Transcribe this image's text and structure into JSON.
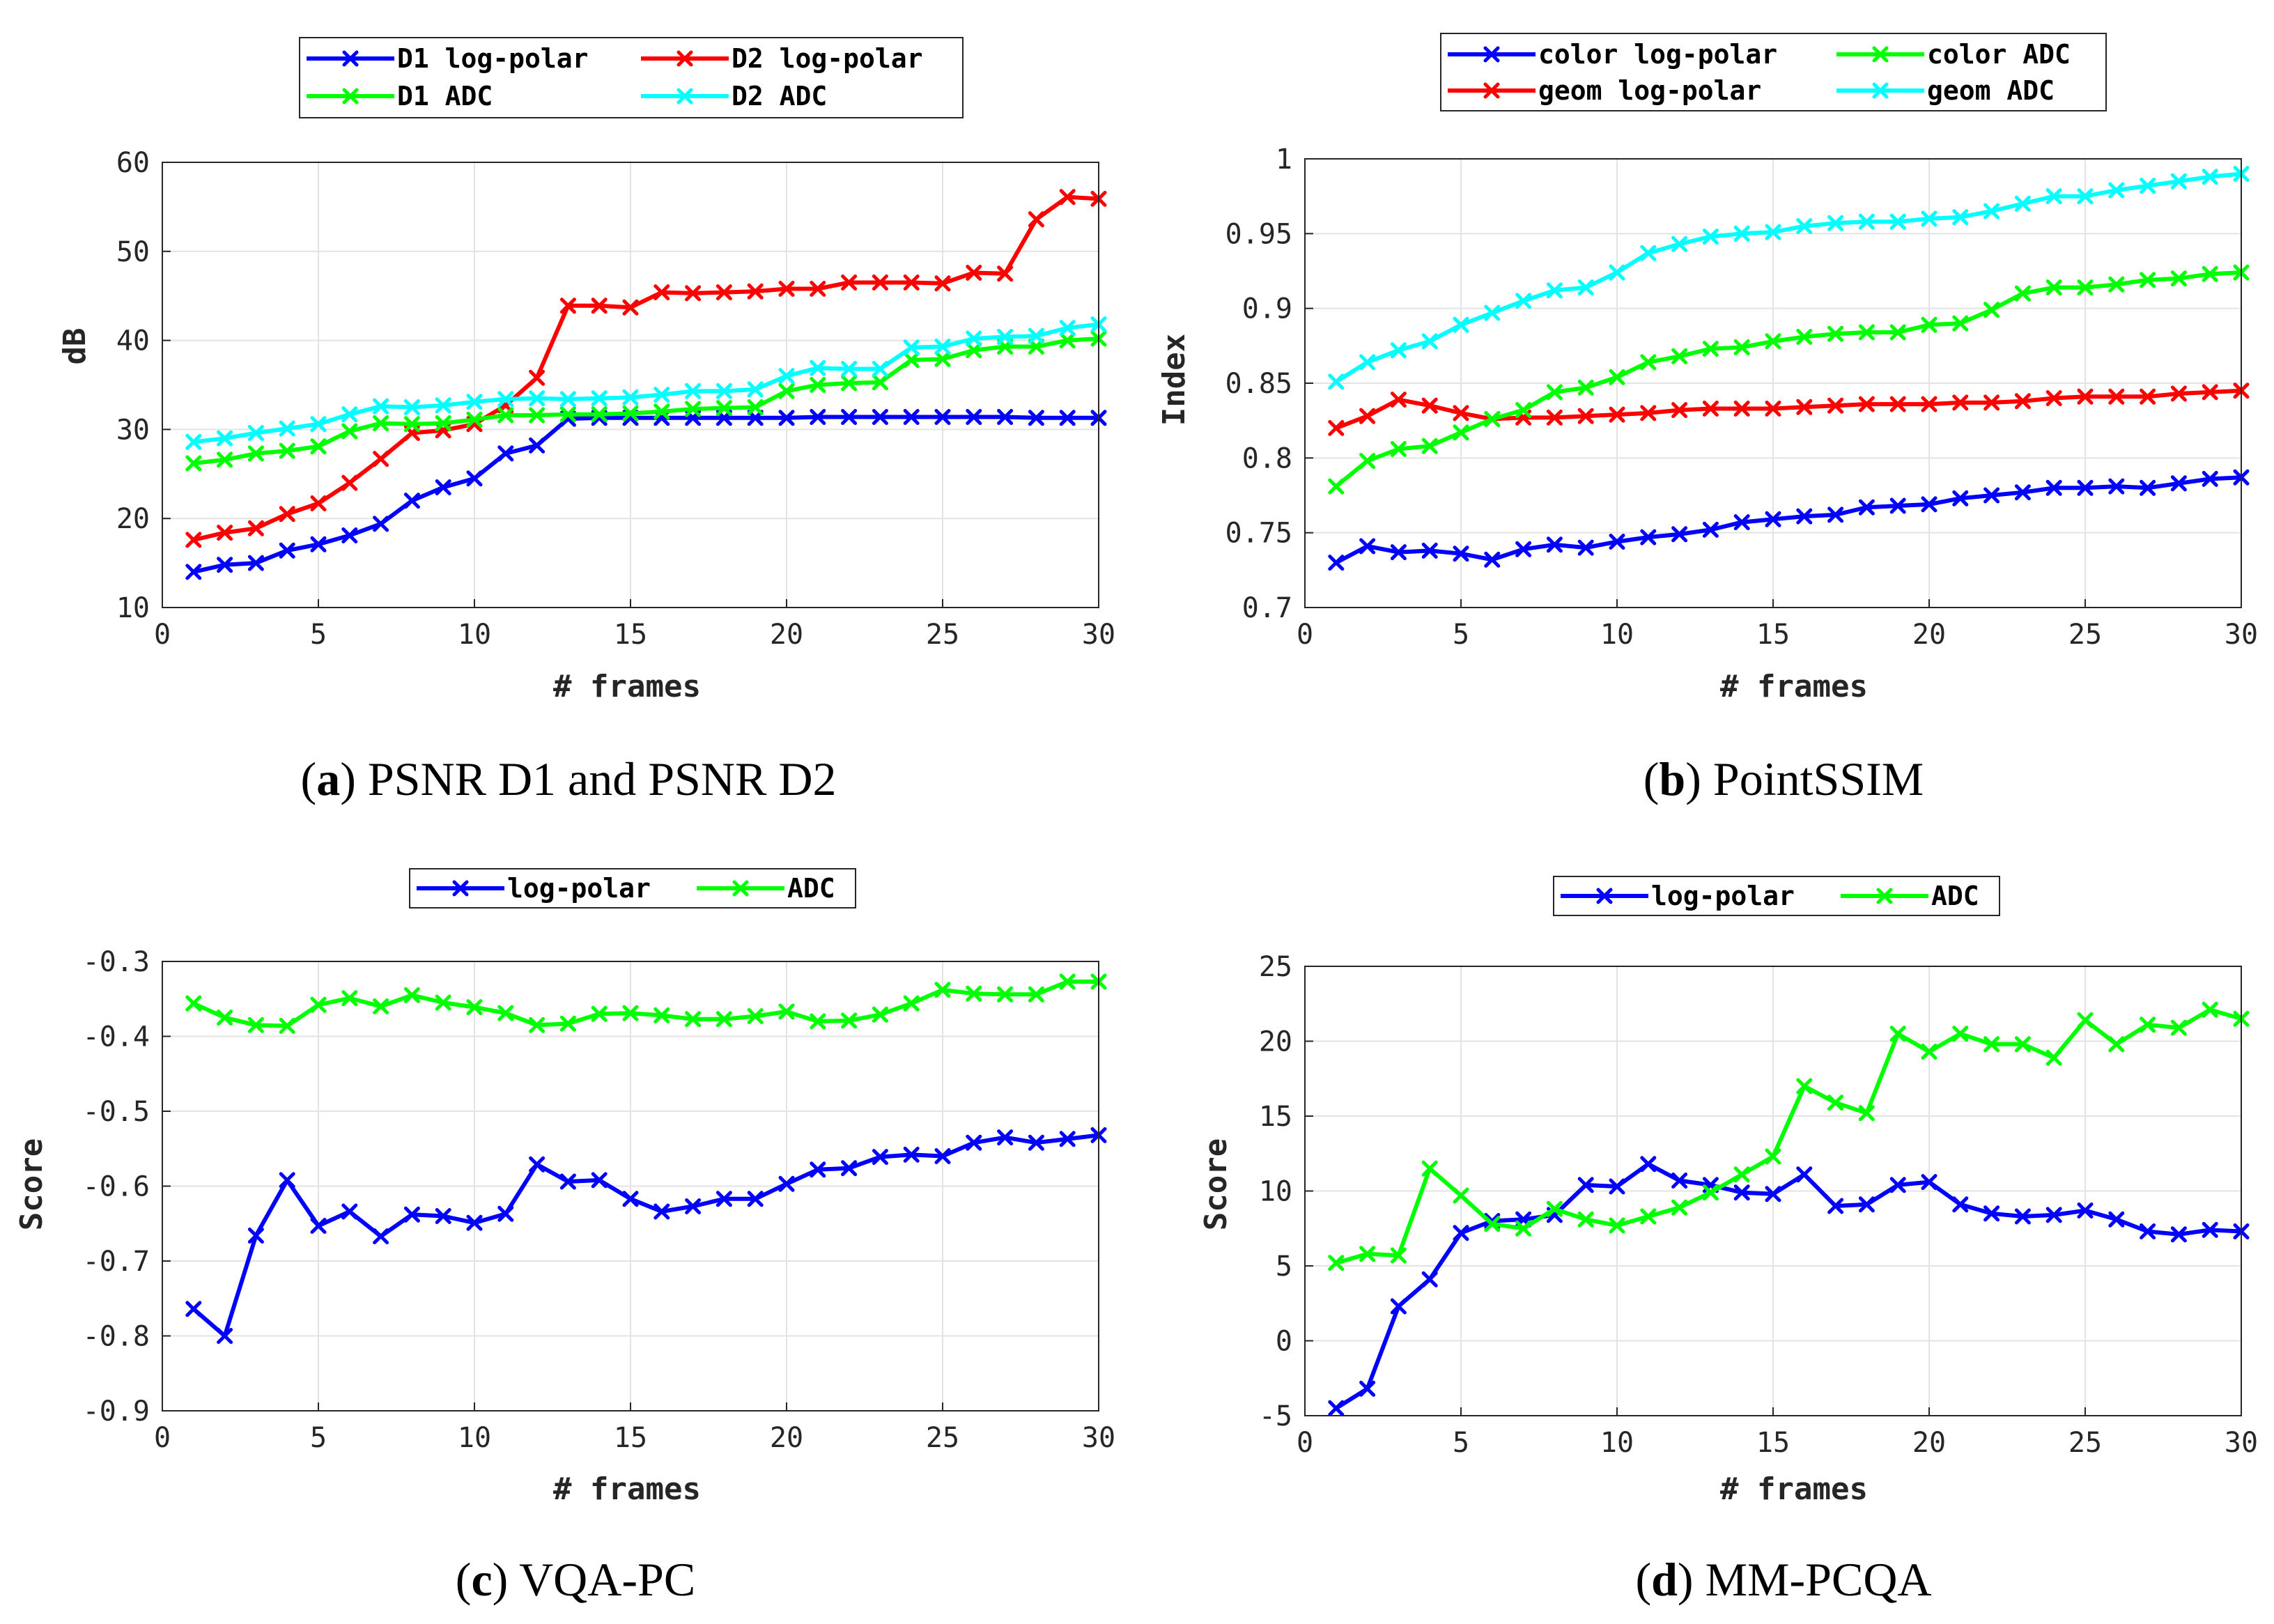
{
  "colors": {
    "blue": "#0000ff",
    "red": "#ff0000",
    "green": "#00ff00",
    "cyan": "#00ffff",
    "grid": "#e3e3e3",
    "axis": "#262626"
  },
  "chart_data": [
    {
      "type": "line",
      "caption": {
        "letter": "a",
        "text": "PSNR D1 and PSNR D2"
      },
      "xlabel": "# frames",
      "ylabel": "dB",
      "xlim": [
        0,
        30
      ],
      "ylim": [
        10,
        60
      ],
      "xticks": [
        0,
        5,
        10,
        15,
        20,
        25,
        30
      ],
      "yticks": [
        10,
        20,
        30,
        40,
        50,
        60
      ],
      "xtick_labels": [
        "0",
        "5",
        "10",
        "15",
        "20",
        "25",
        "30"
      ],
      "ytick_labels": [
        "10",
        "20",
        "30",
        "40",
        "50",
        "60"
      ],
      "x": [
        1,
        2,
        3,
        4,
        5,
        6,
        7,
        8,
        9,
        10,
        11,
        12,
        13,
        14,
        15,
        16,
        17,
        18,
        19,
        20,
        21,
        22,
        23,
        24,
        25,
        26,
        27,
        28,
        29,
        30
      ],
      "series": [
        {
          "name": "D1 log-polar",
          "color": "blue",
          "values": [
            14,
            14.8,
            15,
            16.4,
            17.1,
            18.1,
            19.4,
            22,
            23.5,
            24.5,
            27.3,
            28.2,
            31.2,
            31.3,
            31.3,
            31.3,
            31.3,
            31.3,
            31.3,
            31.3,
            31.4,
            31.4,
            31.4,
            31.4,
            31.4,
            31.4,
            31.4,
            31.3,
            31.3,
            31.3
          ]
        },
        {
          "name": "D2 log-polar",
          "color": "red",
          "values": [
            17.6,
            18.4,
            18.9,
            20.5,
            21.7,
            24,
            26.7,
            29.6,
            29.9,
            30.6,
            32.7,
            35.8,
            43.9,
            43.9,
            43.7,
            45.4,
            45.3,
            45.4,
            45.5,
            45.8,
            45.8,
            46.5,
            46.5,
            46.5,
            46.4,
            47.6,
            47.5,
            53.6,
            56.1,
            55.9
          ]
        },
        {
          "name": "D1 ADC",
          "color": "green",
          "values": [
            26.2,
            26.6,
            27.3,
            27.6,
            28.1,
            29.8,
            30.7,
            30.6,
            30.7,
            31.1,
            31.6,
            31.6,
            31.7,
            31.7,
            31.8,
            32,
            32.3,
            32.4,
            32.5,
            34.3,
            35,
            35.2,
            35.3,
            37.8,
            37.9,
            38.9,
            39.3,
            39.3,
            40,
            40.2
          ]
        },
        {
          "name": "D2 ADC",
          "color": "cyan",
          "values": [
            28.6,
            29,
            29.6,
            30.1,
            30.6,
            31.7,
            32.6,
            32.5,
            32.7,
            33.1,
            33.4,
            33.5,
            33.4,
            33.5,
            33.6,
            33.9,
            34.3,
            34.3,
            34.5,
            36,
            36.9,
            36.8,
            36.8,
            39.2,
            39.3,
            40.2,
            40.4,
            40.5,
            41.4,
            41.8
          ]
        }
      ]
    },
    {
      "type": "line",
      "caption": {
        "letter": "b",
        "text": "PointSSIM"
      },
      "xlabel": "# frames",
      "ylabel": "Index",
      "xlim": [
        0,
        30
      ],
      "ylim": [
        0.7,
        1.0
      ],
      "xticks": [
        0,
        5,
        10,
        15,
        20,
        25,
        30
      ],
      "yticks": [
        0.7,
        0.75,
        0.8,
        0.85,
        0.9,
        0.95,
        1.0
      ],
      "xtick_labels": [
        "0",
        "5",
        "10",
        "15",
        "20",
        "25",
        "30"
      ],
      "ytick_labels": [
        "0.7",
        "0.75",
        "0.8",
        "0.85",
        "0.9",
        "0.95",
        "1"
      ],
      "x": [
        1,
        2,
        3,
        4,
        5,
        6,
        7,
        8,
        9,
        10,
        11,
        12,
        13,
        14,
        15,
        16,
        17,
        18,
        19,
        20,
        21,
        22,
        23,
        24,
        25,
        26,
        27,
        28,
        29,
        30
      ],
      "series": [
        {
          "name": "color log-polar",
          "color": "blue",
          "values": [
            0.73,
            0.741,
            0.737,
            0.738,
            0.736,
            0.732,
            0.739,
            0.742,
            0.74,
            0.744,
            0.747,
            0.749,
            0.752,
            0.757,
            0.759,
            0.761,
            0.762,
            0.767,
            0.768,
            0.769,
            0.773,
            0.775,
            0.777,
            0.78,
            0.78,
            0.781,
            0.78,
            0.783,
            0.786,
            0.787
          ]
        },
        {
          "name": "geom log-polar",
          "color": "red",
          "values": [
            0.82,
            0.828,
            0.839,
            0.835,
            0.83,
            0.826,
            0.827,
            0.827,
            0.828,
            0.829,
            0.83,
            0.832,
            0.833,
            0.833,
            0.833,
            0.834,
            0.835,
            0.836,
            0.836,
            0.836,
            0.837,
            0.837,
            0.838,
            0.84,
            0.841,
            0.841,
            0.841,
            0.843,
            0.844,
            0.845
          ]
        },
        {
          "name": "color ADC",
          "color": "green",
          "values": [
            0.781,
            0.798,
            0.806,
            0.808,
            0.817,
            0.826,
            0.832,
            0.844,
            0.847,
            0.854,
            0.864,
            0.868,
            0.873,
            0.874,
            0.878,
            0.881,
            0.883,
            0.884,
            0.884,
            0.889,
            0.89,
            0.899,
            0.91,
            0.914,
            0.914,
            0.916,
            0.919,
            0.92,
            0.923,
            0.924
          ]
        },
        {
          "name": "geom ADC",
          "color": "cyan",
          "values": [
            0.851,
            0.864,
            0.872,
            0.878,
            0.889,
            0.897,
            0.905,
            0.912,
            0.914,
            0.924,
            0.937,
            0.943,
            0.948,
            0.95,
            0.951,
            0.955,
            0.957,
            0.958,
            0.958,
            0.96,
            0.961,
            0.965,
            0.97,
            0.975,
            0.975,
            0.979,
            0.982,
            0.985,
            0.988,
            0.99
          ]
        }
      ]
    },
    {
      "type": "line",
      "caption": {
        "letter": "c",
        "text": "VQA-PC"
      },
      "xlabel": "# frames",
      "ylabel": "Score",
      "xlim": [
        0,
        30
      ],
      "ylim": [
        -0.9,
        -0.3
      ],
      "xticks": [
        0,
        5,
        10,
        15,
        20,
        25,
        30
      ],
      "yticks": [
        -0.9,
        -0.8,
        -0.7,
        -0.6,
        -0.5,
        -0.4,
        -0.3
      ],
      "xtick_labels": [
        "0",
        "5",
        "10",
        "15",
        "20",
        "25",
        "30"
      ],
      "ytick_labels": [
        "-0.9",
        "-0.8",
        "-0.7",
        "-0.6",
        "-0.5",
        "-0.4",
        "-0.3"
      ],
      "x": [
        1,
        2,
        3,
        4,
        5,
        6,
        7,
        8,
        9,
        10,
        11,
        12,
        13,
        14,
        15,
        16,
        17,
        18,
        19,
        20,
        21,
        22,
        23,
        24,
        25,
        26,
        27,
        28,
        29,
        30
      ],
      "series": [
        {
          "name": "log-polar",
          "color": "blue",
          "values": [
            -0.764,
            -0.8,
            -0.666,
            -0.592,
            -0.653,
            -0.634,
            -0.667,
            -0.638,
            -0.64,
            -0.649,
            -0.637,
            -0.571,
            -0.594,
            -0.592,
            -0.617,
            -0.634,
            -0.627,
            -0.617,
            -0.617,
            -0.597,
            -0.578,
            -0.576,
            -0.561,
            -0.558,
            -0.56,
            -0.542,
            -0.535,
            -0.542,
            -0.537,
            -0.532
          ]
        },
        {
          "name": "ADC",
          "color": "green",
          "values": [
            -0.356,
            -0.375,
            -0.385,
            -0.386,
            -0.358,
            -0.349,
            -0.36,
            -0.345,
            -0.355,
            -0.361,
            -0.369,
            -0.385,
            -0.383,
            -0.37,
            -0.369,
            -0.372,
            -0.377,
            -0.377,
            -0.373,
            -0.367,
            -0.38,
            -0.379,
            -0.371,
            -0.356,
            -0.338,
            -0.343,
            -0.344,
            -0.344,
            -0.327,
            -0.327
          ]
        }
      ]
    },
    {
      "type": "line",
      "caption": {
        "letter": "d",
        "text": "MM-PCQA"
      },
      "xlabel": "# frames",
      "ylabel": "Score",
      "xlim": [
        0,
        30
      ],
      "ylim": [
        -5,
        25
      ],
      "xticks": [
        0,
        5,
        10,
        15,
        20,
        25,
        30
      ],
      "yticks": [
        -5,
        0,
        5,
        10,
        15,
        20,
        25
      ],
      "xtick_labels": [
        "0",
        "5",
        "10",
        "15",
        "20",
        "25",
        "30"
      ],
      "ytick_labels": [
        "-5",
        "0",
        "5",
        "10",
        "15",
        "20",
        "25"
      ],
      "x": [
        1,
        2,
        3,
        4,
        5,
        6,
        7,
        8,
        9,
        10,
        11,
        12,
        13,
        14,
        15,
        16,
        17,
        18,
        19,
        20,
        21,
        22,
        23,
        24,
        25,
        26,
        27,
        28,
        29,
        30
      ],
      "series": [
        {
          "name": "log-polar",
          "color": "blue",
          "values": [
            -4.5,
            -3.2,
            2.3,
            4.1,
            7.2,
            8,
            8.1,
            8.4,
            10.4,
            10.3,
            11.8,
            10.7,
            10.4,
            9.9,
            9.8,
            11.1,
            9,
            9.1,
            10.4,
            10.6,
            9.1,
            8.5,
            8.3,
            8.4,
            8.7,
            8.1,
            7.3,
            7.1,
            7.4,
            7.3
          ]
        },
        {
          "name": "ADC",
          "color": "green",
          "values": [
            5.2,
            5.8,
            5.7,
            11.5,
            9.7,
            7.8,
            7.5,
            8.8,
            8.1,
            7.7,
            8.3,
            8.9,
            9.9,
            11.1,
            12.3,
            17,
            15.9,
            15.2,
            20.5,
            19.3,
            20.5,
            19.8,
            19.8,
            18.9,
            21.4,
            19.8,
            21.1,
            20.9,
            22.1,
            21.5
          ]
        }
      ]
    }
  ]
}
